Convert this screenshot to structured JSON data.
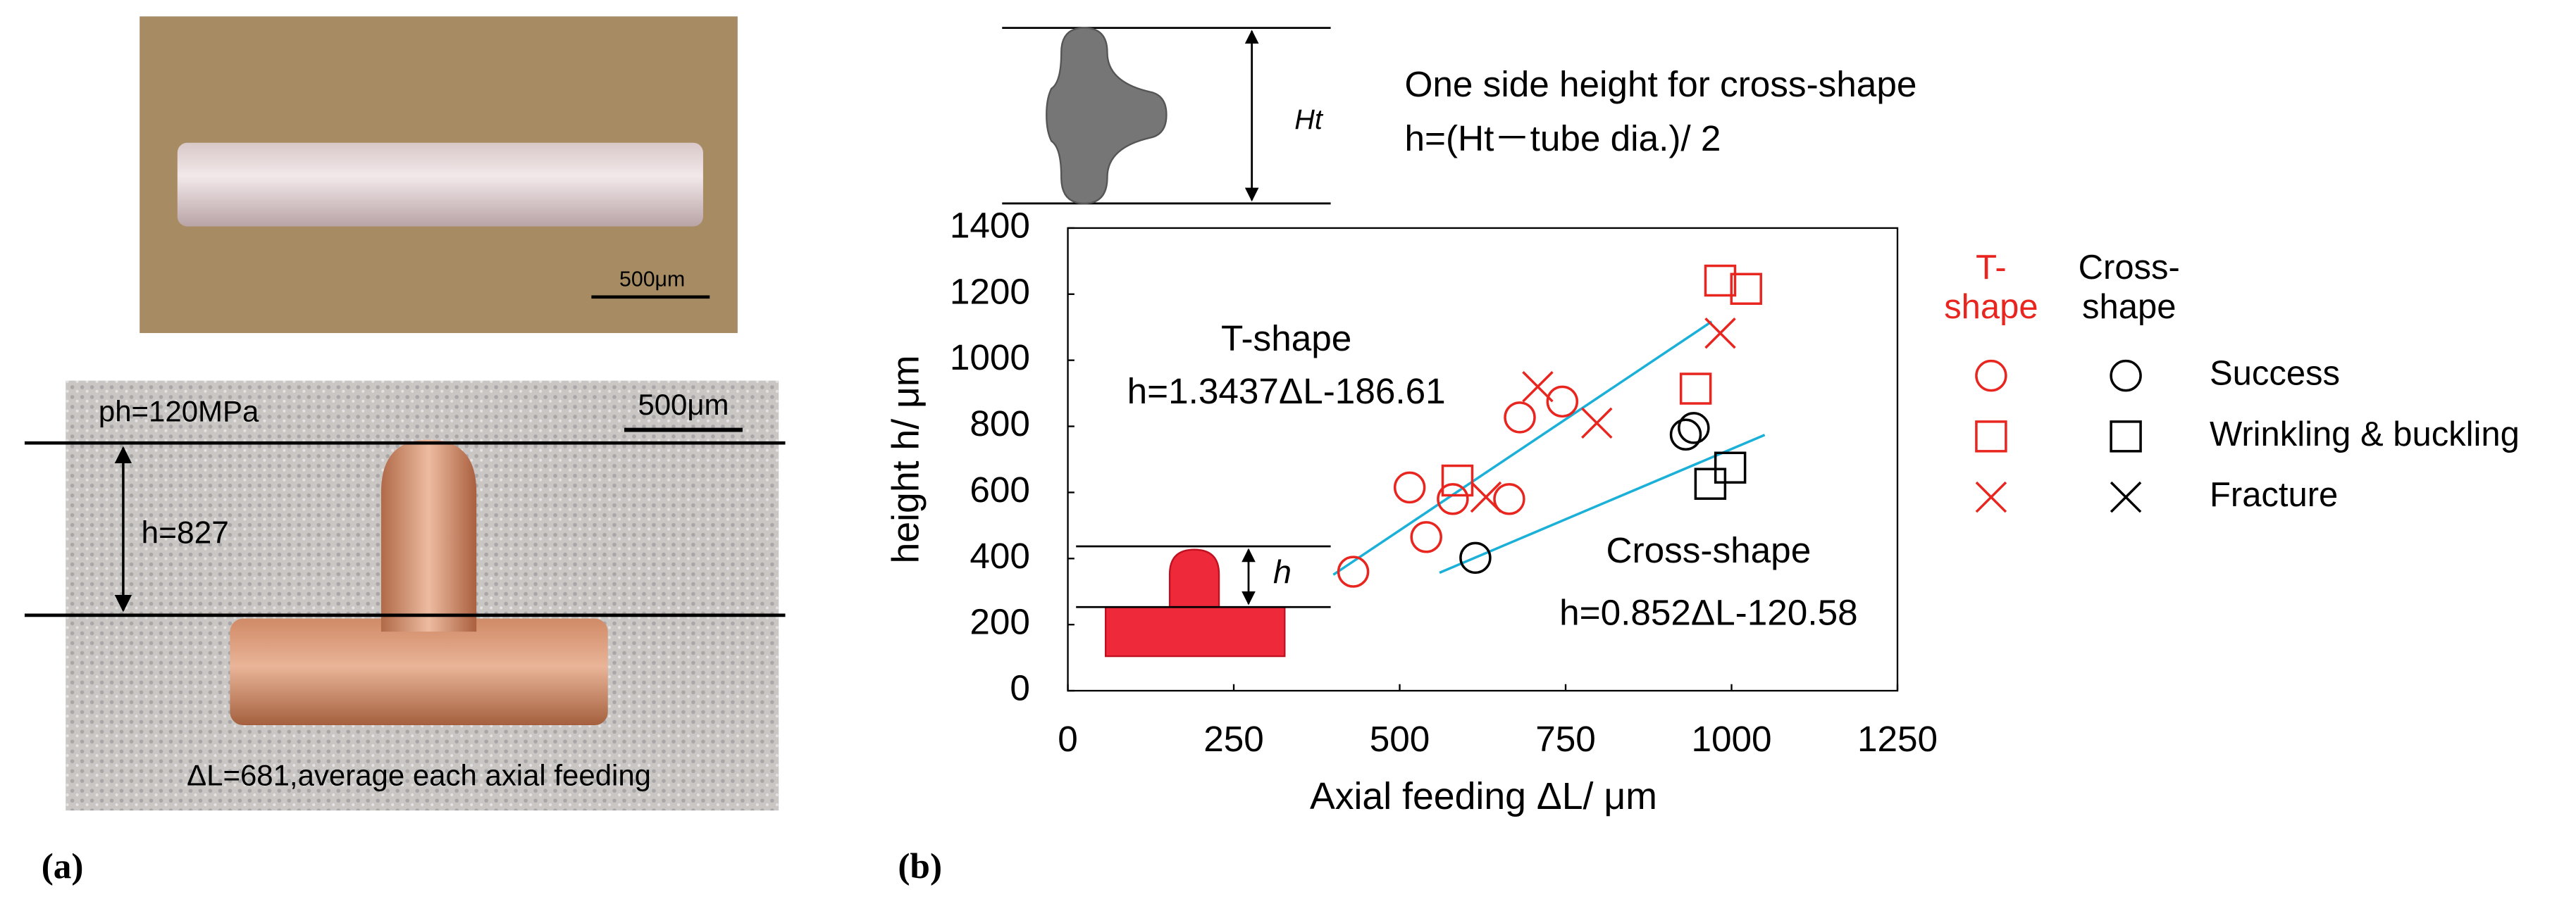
{
  "panels": {
    "a_label": "(a)",
    "b_label": "(b)"
  },
  "photo_top": {
    "scale_bar": "500μm"
  },
  "photo_bottom": {
    "pressure": "ph=120MPa",
    "scale_bar": "500μm",
    "height": "h=827",
    "feeding": "ΔL=681,average each axial feeding"
  },
  "inset_cross": {
    "dimension": "Ht",
    "description": "One side height for cross-shape",
    "formula": "h=(Ht－tube dia.)/ 2"
  },
  "inset_t": {
    "dimension": "h"
  },
  "chart_data": {
    "type": "scatter",
    "xlabel": "Axial feeding ΔL/ μm",
    "ylabel": "height h/ μm",
    "xlim": [
      0,
      1250
    ],
    "xticks": [
      0,
      250,
      500,
      750,
      1000,
      1250
    ],
    "ylim": [
      0,
      1400
    ],
    "yticks": [
      0,
      200,
      400,
      600,
      800,
      1000,
      1200,
      1400
    ],
    "grid": false,
    "legend": "right",
    "groups": [
      {
        "name": "T-shape",
        "color": "#e8261f",
        "series": [
          {
            "name": "Success",
            "marker": "circle",
            "x": [
              430,
              515,
              540,
              580,
              665,
              681,
              745
            ],
            "y": [
              360,
              615,
              465,
              580,
              580,
              827,
              875
            ]
          },
          {
            "name": "Wrinkling & buckling",
            "marker": "square",
            "x": [
              587,
              946,
              983,
              1022
            ],
            "y": [
              636,
              914,
              1241,
              1216
            ]
          },
          {
            "name": "Fracture",
            "marker": "cross",
            "x": [
              630,
              708,
              797,
              983
            ],
            "y": [
              586,
              920,
              810,
              1082
            ]
          }
        ]
      },
      {
        "name": "Cross-shape",
        "color": "#000000",
        "series": [
          {
            "name": "Success",
            "marker": "circle",
            "x": [
              614,
              931,
              943
            ],
            "y": [
              402,
              775,
              795
            ]
          },
          {
            "name": "Wrinkling & buckling",
            "marker": "square",
            "x": [
              968,
              998
            ],
            "y": [
              626,
              675
            ]
          },
          {
            "name": "Fracture",
            "marker": "cross",
            "x": [],
            "y": []
          }
        ]
      }
    ],
    "trend_lines": [
      {
        "name": "T-shape",
        "equation": "h=1.3437ΔL-186.61",
        "color": "#1ab0d8",
        "x": [
          400,
          970
        ],
        "y": [
          351,
          1117
        ]
      },
      {
        "name": "Cross-shape",
        "equation": "h=0.852ΔL-120.58",
        "color": "#1ab0d8",
        "x": [
          560,
          1050
        ],
        "y": [
          357,
          774
        ]
      }
    ]
  }
}
